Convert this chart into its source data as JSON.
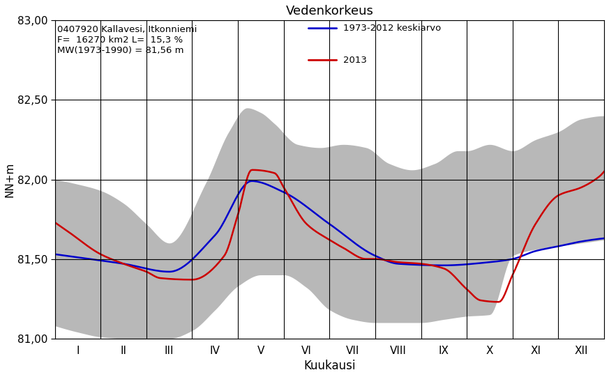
{
  "title": "Vedenkorkeus",
  "ylabel": "NN+m",
  "xlabel": "Kuukausi",
  "station_line1": "0407920 Kallavesi, Itkonniemi",
  "station_line2": "F=  16270 km2 L=  15,3 %",
  "station_line3": "MW(1973-1990) = 81,56 m",
  "legend_avg": "1973-2012 keskiarvo",
  "legend_2013": "2013",
  "ylim": [
    81.0,
    83.0
  ],
  "yticks": [
    81.0,
    81.5,
    82.0,
    82.5,
    83.0
  ],
  "ytick_labels": [
    "81,00",
    "81,50",
    "82,00",
    "82,50",
    "83,00"
  ],
  "month_labels": [
    "I",
    "II",
    "III",
    "IV",
    "V",
    "VI",
    "VII",
    "VIII",
    "IX",
    "X",
    "XI",
    "XII"
  ],
  "color_avg": "#0000cc",
  "color_2013": "#cc0000",
  "color_shading": "#b8b8b8",
  "months_x": [
    1,
    2,
    3,
    4,
    5,
    6,
    7,
    8,
    9,
    10,
    11,
    12
  ],
  "avg_monthly": [
    81.53,
    81.48,
    81.42,
    81.52,
    81.98,
    81.88,
    81.68,
    81.48,
    81.46,
    81.5,
    81.55,
    81.62
  ],
  "val2013_monthly": [
    81.73,
    81.5,
    81.38,
    81.52,
    82.06,
    81.72,
    81.5,
    81.45,
    81.24,
    81.46,
    81.87,
    82.02
  ],
  "upper_monthly": [
    82.0,
    81.93,
    81.52,
    82.1,
    82.43,
    82.22,
    82.22,
    82.06,
    81.95,
    82.0,
    82.32,
    82.38
  ],
  "lower_monthly": [
    81.07,
    81.0,
    81.0,
    81.1,
    81.3,
    81.38,
    81.15,
    81.12,
    81.12,
    81.14,
    81.52,
    81.6
  ]
}
